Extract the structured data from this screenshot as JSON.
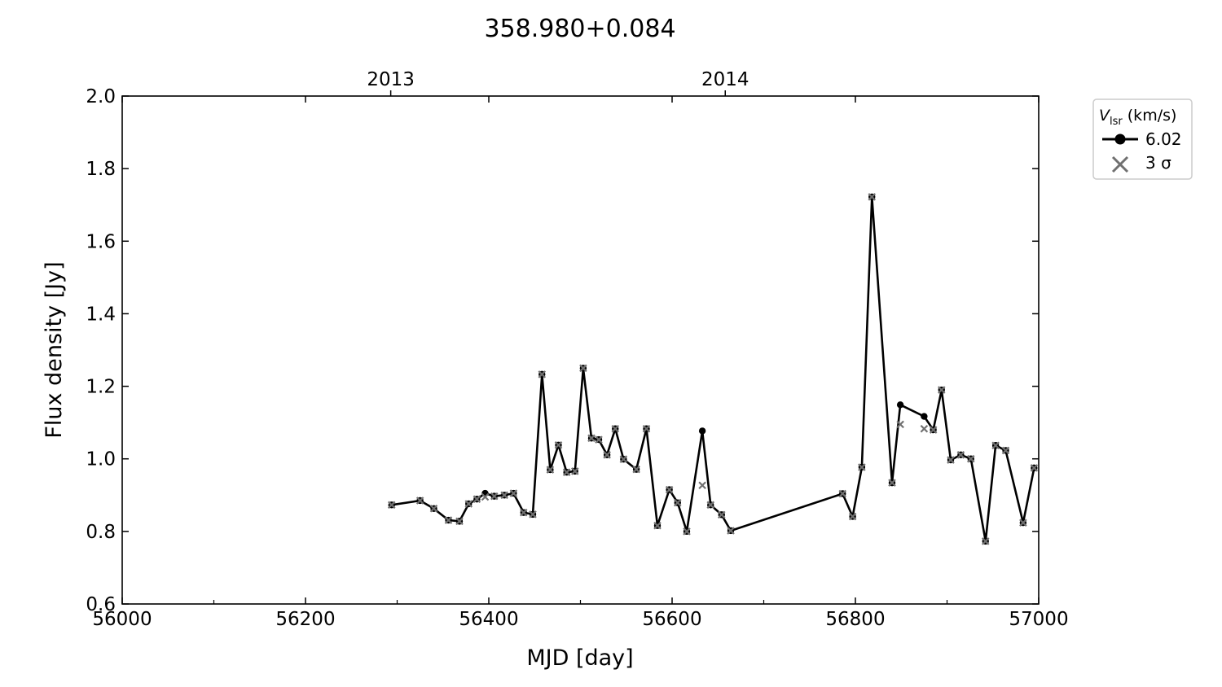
{
  "chart_data": {
    "type": "line",
    "title": "358.980+0.084",
    "xlabel": "MJD [day]",
    "ylabel": "Flux density [Jy]",
    "xlim": [
      56000,
      57000
    ],
    "ylim": [
      0.6,
      2.0
    ],
    "xticks": [
      56000,
      56200,
      56400,
      56600,
      56800,
      57000
    ],
    "xtick_labels": [
      "56000",
      "56200",
      "56400",
      "56600",
      "56800",
      "57000"
    ],
    "yticks": [
      0.6,
      0.8,
      1.0,
      1.2,
      1.4,
      1.6,
      1.8,
      2.0
    ],
    "ytick_labels": [
      "0.6",
      "0.8",
      "1.0",
      "1.2",
      "1.4",
      "1.6",
      "1.8",
      "2.0"
    ],
    "top_axis": {
      "ticks": [
        56293,
        56658
      ],
      "labels": [
        "2013",
        "2014"
      ]
    },
    "legend": {
      "title_main": "V",
      "title_sub": "lsr",
      "title_unit": " (km/s)",
      "placement": "outside-top-right",
      "entries": [
        {
          "label": "6.02",
          "marker": "circle-line"
        },
        {
          "label": "3 σ",
          "marker": "x"
        }
      ]
    },
    "colors": {
      "series": "#000000",
      "sigma": "#707070"
    },
    "series": [
      {
        "name": "6.02",
        "x": [
          56294,
          56325,
          56340,
          56356,
          56368,
          56378,
          56387,
          56396,
          56406,
          56417,
          56427,
          56438,
          56448,
          56458,
          56467,
          56476,
          56485,
          56494,
          56503,
          56512,
          56520,
          56529,
          56538,
          56547,
          56561,
          56572,
          56584,
          56597,
          56606,
          56616,
          56633,
          56642,
          56654,
          56664,
          56786,
          56797,
          56807,
          56818,
          56840,
          56849,
          56875,
          56885,
          56894,
          56904,
          56915,
          56926,
          56942,
          56953,
          56964,
          56983,
          56995
        ],
        "y": [
          0.873,
          0.885,
          0.863,
          0.831,
          0.828,
          0.876,
          0.889,
          0.905,
          0.897,
          0.9,
          0.905,
          0.852,
          0.847,
          1.233,
          0.97,
          1.038,
          0.963,
          0.966,
          1.25,
          1.057,
          1.053,
          1.011,
          1.083,
          0.999,
          0.971,
          1.083,
          0.816,
          0.915,
          0.879,
          0.8,
          1.077,
          0.873,
          0.846,
          0.802,
          0.904,
          0.841,
          0.977,
          1.722,
          0.934,
          1.149,
          1.117,
          1.08,
          1.19,
          0.997,
          1.011,
          1.0,
          0.773,
          1.037,
          1.023,
          0.824,
          0.975
        ]
      },
      {
        "name": "3 σ",
        "x": [
          56294,
          56325,
          56340,
          56356,
          56368,
          56378,
          56387,
          56396,
          56406,
          56417,
          56427,
          56438,
          56448,
          56458,
          56467,
          56476,
          56485,
          56494,
          56503,
          56512,
          56520,
          56529,
          56538,
          56547,
          56561,
          56572,
          56584,
          56597,
          56606,
          56616,
          56633,
          56642,
          56654,
          56664,
          56786,
          56797,
          56807,
          56818,
          56840,
          56849,
          56875,
          56885,
          56894,
          56904,
          56915,
          56926,
          56942,
          56953,
          56964,
          56983,
          56995
        ],
        "y": [
          0.873,
          0.885,
          0.863,
          0.831,
          0.828,
          0.876,
          0.889,
          0.895,
          0.897,
          0.9,
          0.905,
          0.852,
          0.847,
          1.233,
          0.97,
          1.038,
          0.963,
          0.966,
          1.25,
          1.057,
          1.053,
          1.011,
          1.083,
          0.999,
          0.971,
          1.083,
          0.816,
          0.915,
          0.879,
          0.8,
          0.927,
          0.873,
          0.846,
          0.802,
          0.904,
          0.841,
          0.977,
          1.722,
          0.934,
          1.095,
          1.083,
          1.08,
          1.19,
          0.997,
          1.011,
          1.0,
          0.773,
          1.037,
          1.023,
          0.824,
          0.975
        ]
      }
    ]
  }
}
